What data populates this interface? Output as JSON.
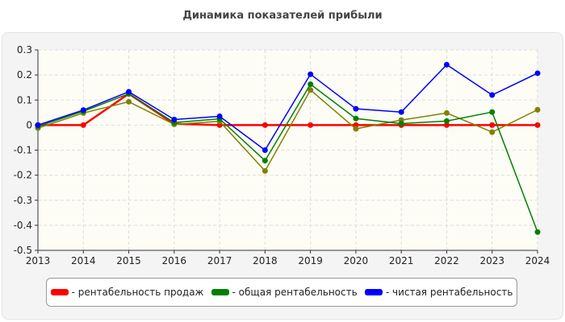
{
  "chart_data": {
    "type": "line",
    "title": "Динамика показателей прибыли",
    "x": [
      "2013",
      "2014",
      "2015",
      "2016",
      "2017",
      "2018",
      "2019",
      "2020",
      "2021",
      "2022",
      "2023",
      "2024"
    ],
    "ylim": [
      -0.5,
      0.3
    ],
    "yticks": [
      "0.3",
      "0.2",
      "0.1",
      "0",
      "-0.1",
      "-0.2",
      "-0.3",
      "-0.4",
      "-0.5"
    ],
    "grid": true,
    "legend_position": "bottom",
    "series": [
      {
        "name": "- рентабельность продаж",
        "color": "#ff0000",
        "values": [
          0,
          0,
          0.125,
          0.005,
          0,
          0,
          0,
          0,
          0,
          0,
          0,
          0
        ]
      },
      {
        "name": "- общая рентабельность",
        "color": "#008000",
        "values": [
          -0.005,
          0.055,
          0.125,
          0.01,
          0.025,
          -0.142,
          0.163,
          0.026,
          0.006,
          0.016,
          0.052,
          -0.427
        ]
      },
      {
        "name": "- чистая рентабельность",
        "color": "#0000ff",
        "values": [
          0,
          0.06,
          0.133,
          0.022,
          0.035,
          -0.1,
          0.203,
          0.065,
          0.052,
          0.241,
          0.12,
          0.207
        ]
      },
      {
        "color": "#808000",
        "values": [
          -0.012,
          0.048,
          0.093,
          0.003,
          0.015,
          -0.183,
          0.14,
          -0.015,
          0.02,
          0.048,
          -0.028,
          0.061
        ]
      }
    ]
  }
}
